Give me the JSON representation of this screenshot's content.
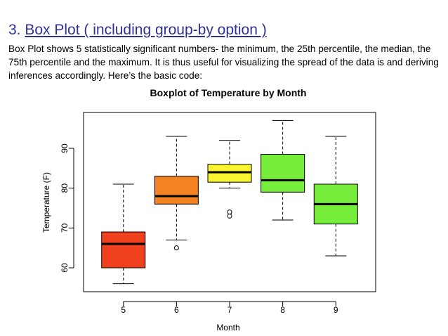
{
  "slide": {
    "number": "3.",
    "title": "Box Plot ( including group-by option )",
    "body": "Box Plot  shows 5 statistically significant numbers- the minimum, the 25th percentile, the median, the 75th percentile and the maximum. It is thus useful for visualizing the spread of the data is and deriving inferences accordingly. Here’s the basic code:"
  },
  "chart_data": {
    "type": "box",
    "title": "Boxplot of Temperature by Month",
    "xlabel": "Month",
    "ylabel": "Temperature (F)",
    "categories": [
      "5",
      "6",
      "7",
      "8",
      "9"
    ],
    "yticks": [
      60,
      70,
      80,
      90
    ],
    "ylim": [
      54,
      99
    ],
    "grid": false,
    "boxes": [
      {
        "category": "5",
        "min": 56,
        "q1": 60,
        "median": 66,
        "q3": 69,
        "max": 81,
        "outliers": [],
        "color": "#f0401e"
      },
      {
        "category": "6",
        "min": 67,
        "q1": 76,
        "median": 78,
        "q3": 83,
        "max": 93,
        "outliers": [
          65
        ],
        "color": "#f58220"
      },
      {
        "category": "7",
        "min": 80,
        "q1": 81.5,
        "median": 84,
        "q3": 86,
        "max": 92,
        "outliers": [
          73,
          74
        ],
        "color": "#f8f430"
      },
      {
        "category": "8",
        "min": 72,
        "q1": 79,
        "median": 82,
        "q3": 88.5,
        "max": 97,
        "outliers": [],
        "color": "#77ee3b"
      },
      {
        "category": "9",
        "min": 63,
        "q1": 71,
        "median": 76,
        "q3": 81,
        "max": 93,
        "outliers": [],
        "color": "#77ee3b"
      }
    ]
  }
}
